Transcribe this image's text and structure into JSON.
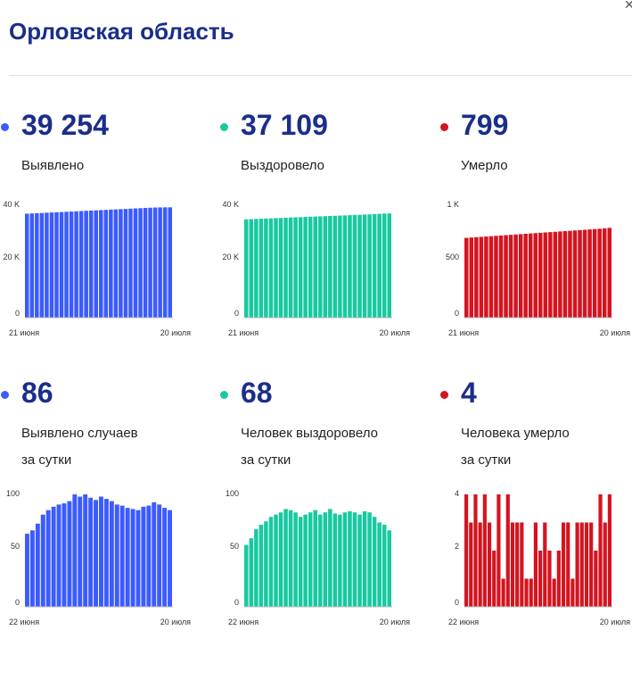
{
  "title": "Орловская область",
  "close_glyph": "✕",
  "chart_data": [
    {
      "type": "bar",
      "color": "#3b5bff",
      "value": "39 254",
      "label_lines": [
        "Выявлено"
      ],
      "ylim": [
        0,
        40000
      ],
      "yticks": [
        {
          "v": 0,
          "t": "0"
        },
        {
          "v": 20000,
          "t": "20 K"
        },
        {
          "v": 40000,
          "t": "40 K"
        }
      ],
      "x_start_label": "21 июня",
      "x_end_label": "20 июля",
      "values": [
        37000,
        37085,
        37170,
        37255,
        37340,
        37425,
        37510,
        37595,
        37680,
        37765,
        37850,
        37935,
        38020,
        38105,
        38190,
        38275,
        38360,
        38445,
        38530,
        38615,
        38700,
        38785,
        38870,
        38955,
        39040,
        39125,
        39190,
        39230,
        39254,
        39254
      ]
    },
    {
      "type": "bar",
      "color": "#18c9a0",
      "value": "37 109",
      "label_lines": [
        "Выздоровело"
      ],
      "ylim": [
        0,
        40000
      ],
      "yticks": [
        {
          "v": 0,
          "t": "0"
        },
        {
          "v": 20000,
          "t": "20 K"
        },
        {
          "v": 40000,
          "t": "40 K"
        }
      ],
      "x_start_label": "21 июня",
      "x_end_label": "20 июля",
      "values": [
        35000,
        35070,
        35140,
        35210,
        35280,
        35350,
        35420,
        35490,
        35560,
        35630,
        35700,
        35770,
        35840,
        35910,
        35980,
        36050,
        36120,
        36190,
        36260,
        36330,
        36400,
        36470,
        36540,
        36610,
        36680,
        36750,
        36850,
        36950,
        37041,
        37109
      ]
    },
    {
      "type": "bar",
      "color": "#d41420",
      "value": "799",
      "label_lines": [
        "Умерло"
      ],
      "ylim": [
        0,
        1000
      ],
      "yticks": [
        {
          "v": 0,
          "t": "0"
        },
        {
          "v": 500,
          "t": "500"
        },
        {
          "v": 1000,
          "t": "1 K"
        }
      ],
      "x_start_label": "21 июня",
      "x_end_label": "20 июля",
      "values": [
        710,
        713,
        716,
        719,
        722,
        725,
        728,
        731,
        734,
        737,
        740,
        743,
        746,
        749,
        752,
        755,
        758,
        761,
        764,
        767,
        770,
        773,
        776,
        779,
        782,
        785,
        788,
        791,
        795,
        799
      ]
    },
    {
      "type": "bar",
      "color": "#3b5bff",
      "value": "86",
      "label_lines": [
        "Выявлено случаев",
        "за сутки"
      ],
      "ylim": [
        0,
        100
      ],
      "yticks": [
        {
          "v": 0,
          "t": "0"
        },
        {
          "v": 50,
          "t": "50"
        },
        {
          "v": 100,
          "t": "100"
        }
      ],
      "x_start_label": "22 июня",
      "x_end_label": "20 июля",
      "values": [
        65,
        68,
        74,
        82,
        86,
        89,
        91,
        92,
        94,
        100,
        98,
        100,
        97,
        95,
        98,
        96,
        94,
        91,
        90,
        88,
        87,
        86,
        89,
        90,
        93,
        91,
        88,
        86
      ]
    },
    {
      "type": "bar",
      "color": "#18c9a0",
      "value": "68",
      "label_lines": [
        "Человек выздоровело",
        "за сутки"
      ],
      "ylim": [
        0,
        100
      ],
      "yticks": [
        {
          "v": 0,
          "t": "0"
        },
        {
          "v": 50,
          "t": "50"
        },
        {
          "v": 100,
          "t": "100"
        }
      ],
      "x_start_label": "22 июня",
      "x_end_label": "20 июля",
      "values": [
        55,
        61,
        69,
        73,
        76,
        80,
        82,
        84,
        87,
        86,
        84,
        80,
        82,
        84,
        86,
        82,
        84,
        87,
        83,
        82,
        84,
        85,
        84,
        82,
        85,
        84,
        80,
        75,
        73,
        68
      ]
    },
    {
      "type": "bar",
      "color": "#d41420",
      "value": "4",
      "label_lines": [
        "Человека умерло",
        "за сутки"
      ],
      "ylim": [
        0,
        4
      ],
      "yticks": [
        {
          "v": 0,
          "t": "0"
        },
        {
          "v": 2,
          "t": "2"
        },
        {
          "v": 4,
          "t": "4"
        }
      ],
      "x_start_label": "22 июня",
      "x_end_label": "20 июля",
      "values": [
        4,
        3,
        4,
        3,
        4,
        3,
        2,
        4,
        1,
        4,
        3,
        3,
        3,
        1,
        1,
        3,
        2,
        3,
        2,
        1,
        2,
        3,
        3,
        1,
        3,
        3,
        3,
        3,
        2,
        4,
        3,
        4
      ]
    }
  ]
}
